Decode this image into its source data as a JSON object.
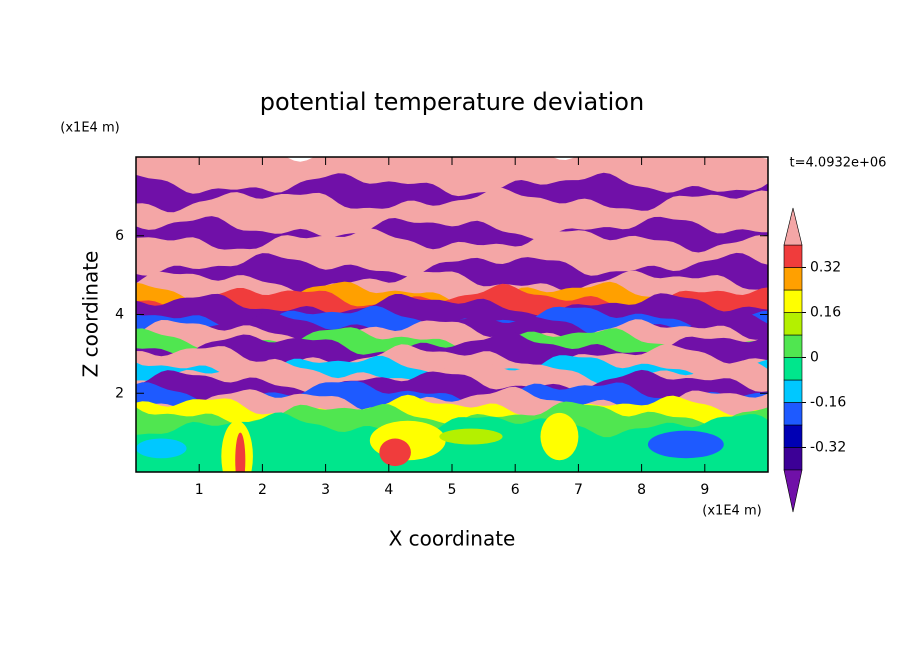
{
  "chart_data": {
    "type": "contour",
    "title": "potential temperature deviation",
    "xlabel": "X coordinate",
    "ylabel": "Z coordinate",
    "x_unit": "(x1E4 m)",
    "y_unit": "(x1E4 m)",
    "annotation": "t=4.0932e+06",
    "xlim": [
      0,
      10
    ],
    "ylim": [
      0,
      8
    ],
    "xticks": [
      1,
      2,
      3,
      4,
      5,
      6,
      7,
      8,
      9
    ],
    "yticks": [
      2,
      4,
      6
    ],
    "colorbar": {
      "levels": [
        -0.4,
        -0.32,
        -0.24,
        -0.16,
        -0.08,
        0,
        0.08,
        0.16,
        0.24,
        0.32,
        0.4
      ],
      "ticks": [
        -0.32,
        -0.16,
        0,
        0.16,
        0.32
      ],
      "colors": [
        "#7010a8",
        "#3c0096",
        "#0000b4",
        "#1e5aff",
        "#00c8ff",
        "#00e68c",
        "#50e650",
        "#b4f000",
        "#ffff00",
        "#ffa000",
        "#f03c3c",
        "#f4a6a6"
      ]
    }
  }
}
